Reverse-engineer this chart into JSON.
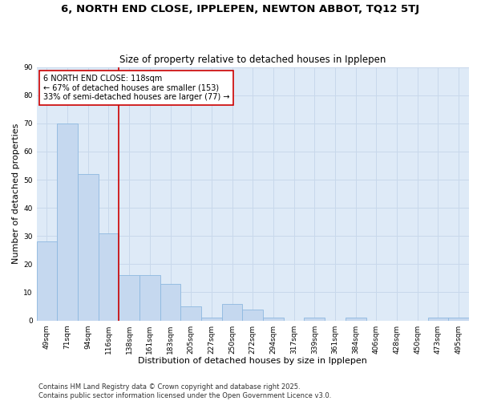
{
  "title": "6, NORTH END CLOSE, IPPLEPEN, NEWTON ABBOT, TQ12 5TJ",
  "subtitle": "Size of property relative to detached houses in Ipplepen",
  "xlabel": "Distribution of detached houses by size in Ipplepen",
  "ylabel": "Number of detached properties",
  "categories": [
    "49sqm",
    "71sqm",
    "94sqm",
    "116sqm",
    "138sqm",
    "161sqm",
    "183sqm",
    "205sqm",
    "227sqm",
    "250sqm",
    "272sqm",
    "294sqm",
    "317sqm",
    "339sqm",
    "361sqm",
    "384sqm",
    "406sqm",
    "428sqm",
    "450sqm",
    "473sqm",
    "495sqm"
  ],
  "values": [
    28,
    70,
    52,
    31,
    16,
    16,
    13,
    5,
    1,
    6,
    4,
    1,
    0,
    1,
    0,
    1,
    0,
    0,
    0,
    1,
    1
  ],
  "bar_color": "#c5d8ef",
  "bar_edge_color": "#8db8e0",
  "grid_color": "#c8d8eb",
  "background_color": "#deeaf7",
  "vline_x": 3.5,
  "vline_color": "#cc0000",
  "annotation_text": "6 NORTH END CLOSE: 118sqm\n← 67% of detached houses are smaller (153)\n33% of semi-detached houses are larger (77) →",
  "annotation_box_color": "#ffffff",
  "annotation_border_color": "#cc0000",
  "ylim": [
    0,
    90
  ],
  "yticks": [
    0,
    10,
    20,
    30,
    40,
    50,
    60,
    70,
    80,
    90
  ],
  "footnote": "Contains HM Land Registry data © Crown copyright and database right 2025.\nContains public sector information licensed under the Open Government Licence v3.0.",
  "title_fontsize": 9.5,
  "subtitle_fontsize": 8.5,
  "axis_label_fontsize": 8,
  "tick_fontsize": 6.5,
  "annotation_fontsize": 7,
  "footnote_fontsize": 6
}
